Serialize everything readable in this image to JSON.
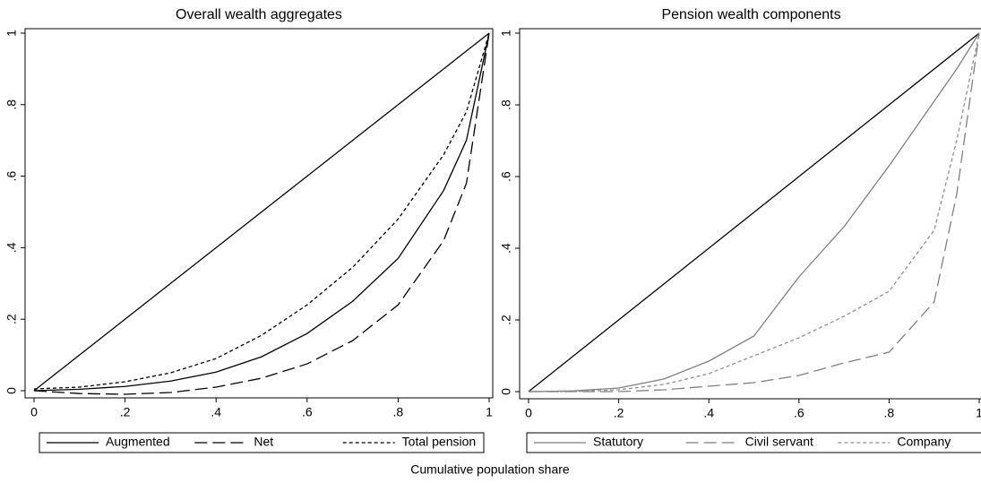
{
  "chart_data": [
    {
      "type": "line",
      "title": "Overall wealth aggregates",
      "x": [
        0,
        0.1,
        0.2,
        0.3,
        0.4,
        0.5,
        0.6,
        0.7,
        0.8,
        0.9,
        0.95,
        1
      ],
      "series": [
        {
          "name": "Augmented",
          "color": "#000000",
          "dash": "solid",
          "values": [
            0,
            0.004,
            0.012,
            0.027,
            0.052,
            0.095,
            0.16,
            0.25,
            0.37,
            0.56,
            0.7,
            1
          ]
        },
        {
          "name": "Net",
          "color": "#000000",
          "dash": "long",
          "values": [
            0,
            -0.008,
            -0.01,
            -0.005,
            0.01,
            0.035,
            0.075,
            0.14,
            0.24,
            0.42,
            0.58,
            1
          ]
        },
        {
          "name": "Total pension",
          "color": "#000000",
          "dash": "short",
          "values": [
            0.005,
            0.01,
            0.025,
            0.05,
            0.09,
            0.155,
            0.24,
            0.345,
            0.48,
            0.66,
            0.78,
            1
          ]
        }
      ],
      "xlim": [
        0,
        1
      ],
      "ylim": [
        0,
        1
      ],
      "xticks": [
        0,
        {
          "value": 0.2,
          "label": ".2"
        },
        {
          "value": 0.4,
          "label": ".4"
        },
        {
          "value": 0.6,
          "label": ".6"
        },
        {
          "value": 0.8,
          "label": ".8"
        },
        1
      ],
      "yticks": [
        0,
        {
          "value": 0.2,
          "label": ".2"
        },
        {
          "value": 0.4,
          "label": ".4"
        },
        {
          "value": 0.6,
          "label": ".6"
        },
        {
          "value": 0.8,
          "label": ".8"
        },
        1
      ],
      "legend": "bottom"
    },
    {
      "type": "line",
      "title": "Pension wealth components",
      "x": [
        0,
        0.1,
        0.2,
        0.3,
        0.4,
        0.5,
        0.6,
        0.7,
        0.8,
        0.9,
        0.95,
        1
      ],
      "series": [
        {
          "name": "Statutory",
          "color": "#808080",
          "dash": "solid",
          "values": [
            0,
            0.002,
            0.01,
            0.035,
            0.085,
            0.155,
            0.32,
            0.46,
            0.63,
            0.81,
            0.9,
            1
          ]
        },
        {
          "name": "Civil servant",
          "color": "#808080",
          "dash": "long",
          "values": [
            0,
            0,
            0,
            0.005,
            0.015,
            0.025,
            0.045,
            0.08,
            0.11,
            0.25,
            0.55,
            1
          ]
        },
        {
          "name": "Company",
          "color": "#909090",
          "dash": "short",
          "values": [
            0,
            0,
            0.005,
            0.02,
            0.05,
            0.1,
            0.15,
            0.21,
            0.28,
            0.45,
            0.7,
            1
          ]
        }
      ],
      "xlim": [
        0,
        1
      ],
      "ylim": [
        0,
        1
      ],
      "xticks": [
        0,
        {
          "value": 0.2,
          "label": ".2"
        },
        {
          "value": 0.4,
          "label": ".4"
        },
        {
          "value": 0.6,
          "label": ".6"
        },
        {
          "value": 0.8,
          "label": ".8"
        },
        1
      ],
      "yticks": [
        0,
        {
          "value": 0.2,
          "label": ".2"
        },
        {
          "value": 0.4,
          "label": ".4"
        },
        {
          "value": 0.6,
          "label": ".6"
        },
        {
          "value": 0.8,
          "label": ".8"
        },
        1
      ],
      "legend": "bottom"
    }
  ],
  "shared_xlabel": "Cumulative population share"
}
